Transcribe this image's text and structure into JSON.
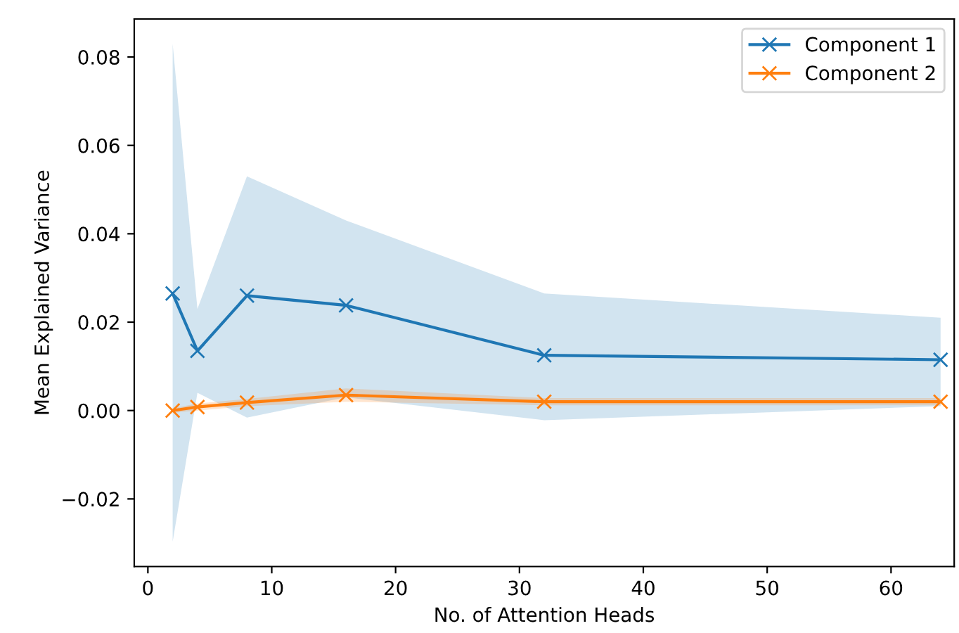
{
  "chart_data": {
    "type": "line",
    "xlabel": "No. of Attention Heads",
    "ylabel": "Mean Explained Variance",
    "x": [
      2,
      4,
      8,
      16,
      32,
      64
    ],
    "series": [
      {
        "name": "Component 1",
        "color": "#1f77b4",
        "values": [
          0.0265,
          0.0135,
          0.026,
          0.0238,
          0.0125,
          0.0115
        ],
        "lower": [
          -0.0297,
          0.004,
          -0.0016,
          0.003,
          -0.0022,
          0.001
        ],
        "upper": [
          0.083,
          0.023,
          0.053,
          0.043,
          0.0265,
          0.021
        ]
      },
      {
        "name": "Component 2",
        "color": "#ff7f0e",
        "values": [
          0.0,
          0.0008,
          0.0018,
          0.0035,
          0.002,
          0.002
        ],
        "lower": [
          -0.0005,
          0.0,
          0.001,
          0.002,
          0.0012,
          0.0012
        ],
        "upper": [
          0.0005,
          0.0016,
          0.0026,
          0.005,
          0.0028,
          0.0028
        ]
      }
    ],
    "xlim": [
      -1.1,
      65.1
    ],
    "ylim": [
      -0.0353,
      0.0886
    ],
    "xticks": [
      0,
      10,
      20,
      30,
      40,
      50,
      60
    ],
    "yticks": [
      {
        "value": -0.02,
        "label": "−0.02"
      },
      {
        "value": 0.0,
        "label": "0.00"
      },
      {
        "value": 0.02,
        "label": "0.02"
      },
      {
        "value": 0.04,
        "label": "0.04"
      },
      {
        "value": 0.06,
        "label": "0.06"
      },
      {
        "value": 0.08,
        "label": "0.08"
      }
    ],
    "marker": "cross",
    "line_style": "solid",
    "grid": false,
    "legend": "top right"
  }
}
